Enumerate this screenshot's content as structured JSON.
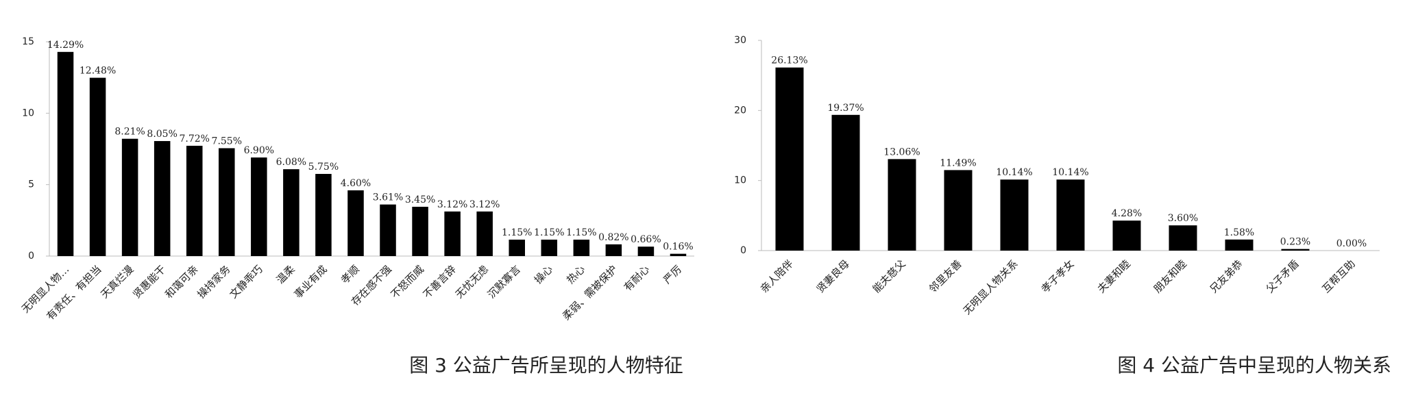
{
  "chart_data": [
    {
      "type": "bar",
      "title": "图 3 公益广告所呈现的人物特征",
      "color": "#000000",
      "categories": [
        "无明显人物…",
        "有责任、有担当",
        "天真烂漫",
        "贤惠能干",
        "和蔼可亲",
        "操持家务",
        "文静乖巧",
        "温柔",
        "事业有成",
        "孝顺",
        "存在感不强",
        "不怒而威",
        "不善言辞",
        "无忧无虑",
        "沉默寡言",
        "操心",
        "热心",
        "柔弱、需被保护",
        "有耐心",
        "严厉"
      ],
      "values": [
        14.29,
        12.48,
        8.21,
        8.05,
        7.72,
        7.55,
        6.9,
        6.08,
        5.75,
        4.6,
        3.61,
        3.45,
        3.12,
        3.12,
        1.15,
        1.15,
        1.15,
        0.82,
        0.66,
        0.16
      ],
      "value_labels": [
        "14.29%",
        "12.48%",
        "8.21%",
        "8.05%",
        "7.72%",
        "7.55%",
        "6.90%",
        "6.08%",
        "5.75%",
        "4.60%",
        "3.61%",
        "3.45%",
        "3.12%",
        "3.12%",
        "1.15%",
        "1.15%",
        "1.15%",
        "0.82%",
        "0.66%",
        "0.16%"
      ],
      "ylim": [
        0,
        15
      ],
      "yticks": [
        0,
        5,
        10,
        15
      ]
    },
    {
      "type": "bar",
      "title": "图 4 公益广告中呈现的人物关系",
      "color": "#000000",
      "categories": [
        "亲人陪伴",
        "贤妻良母",
        "能夫慈父",
        "邻里友善",
        "无明显人物关系",
        "孝子孝女",
        "夫妻和睦",
        "朋友和睦",
        "兄友弟恭",
        "父子矛盾",
        "互帮互助"
      ],
      "values": [
        26.13,
        19.37,
        13.06,
        11.49,
        10.14,
        10.14,
        4.28,
        3.6,
        1.58,
        0.23,
        0.0
      ],
      "value_labels": [
        "26.13%",
        "19.37%",
        "13.06%",
        "11.49%",
        "10.14%",
        "10.14%",
        "4.28%",
        "3.60%",
        "1.58%",
        "0.23%",
        "0.00%"
      ],
      "ylim": [
        0,
        30
      ],
      "yticks": [
        0,
        10,
        20,
        30
      ]
    }
  ]
}
